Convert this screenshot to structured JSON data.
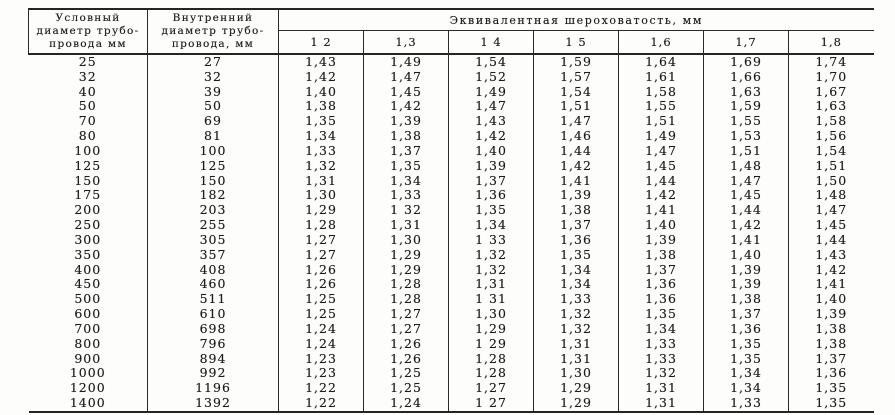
{
  "table": {
    "columns": {
      "nominal": [
        "Условный",
        "диаметр трубо-",
        "провода мм"
      ],
      "inner": [
        "Внутренний",
        "диаметр трубо-",
        "провода, мм"
      ],
      "roughness_group": "Эквивалентная шероховатость, мм",
      "roughness_values": [
        "1 2",
        "1,3",
        "1 4",
        "1 5",
        "1,6",
        "1,7",
        "1,8"
      ]
    },
    "rows": [
      [
        "25",
        "27",
        "1,43",
        "1,49",
        "1,54",
        "1,59",
        "1,64",
        "1,69",
        "1,74"
      ],
      [
        "32",
        "32",
        "1,42",
        "1,47",
        "1,52",
        "1,57",
        "1,61",
        "1,66",
        "1,70"
      ],
      [
        "40",
        "39",
        "1,40",
        "1,45",
        "1,49",
        "1,54",
        "1,58",
        "1,63",
        "1,67"
      ],
      [
        "50",
        "50",
        "1,38",
        "1,42",
        "1,47",
        "1,51",
        "1,55",
        "1,59",
        "1,63"
      ],
      [
        "70",
        "69",
        "1,35",
        "1,39",
        "1,43",
        "1,47",
        "1,51",
        "1,55",
        "1,58"
      ],
      [
        "80",
        "81",
        "1,34",
        "1,38",
        "1,42",
        "1,46",
        "1,49",
        "1,53",
        "1,56"
      ],
      [
        "100",
        "100",
        "1,33",
        "1,37",
        "1,40",
        "1,44",
        "1,47",
        "1,51",
        "1,54"
      ],
      [
        "125",
        "125",
        "1,32",
        "1,35",
        "1,39",
        "1,42",
        "1,45",
        "1,48",
        "1,51"
      ],
      [
        "150",
        "150",
        "1,31",
        "1,34",
        "1,37",
        "1,41",
        "1,44",
        "1,47",
        "1,50"
      ],
      [
        "175",
        "182",
        "1,30",
        "1,33",
        "1,36",
        "1,39",
        "1,42",
        "1,45",
        "1,48"
      ],
      [
        "200",
        "203",
        "1,29",
        "1 32",
        "1,35",
        "1,38",
        "1,41",
        "1,44",
        "1,47"
      ],
      [
        "250",
        "255",
        "1,28",
        "1,31",
        "1,34",
        "1,37",
        "1,40",
        "1,42",
        "1,45"
      ],
      [
        "300",
        "305",
        "1,27",
        "1,30",
        "1 33",
        "1,36",
        "1,39",
        "1,41",
        "1,44"
      ],
      [
        "350",
        "357",
        "1,27",
        "1,29",
        "1,32",
        "1,35",
        "1,38",
        "1,40",
        "1,43"
      ],
      [
        "400",
        "408",
        "1,26",
        "1,29",
        "1,32",
        "1,34",
        "1,37",
        "1,39",
        "1,42"
      ],
      [
        "450",
        "460",
        "1,26",
        "1,28",
        "1,31",
        "1,34",
        "1,36",
        "1,39",
        "1,41"
      ],
      [
        "500",
        "511",
        "1,25",
        "1,28",
        "1 31",
        "1,33",
        "1,36",
        "1,38",
        "1,40"
      ],
      [
        "600",
        "610",
        "1,25",
        "1,27",
        "1,30",
        "1,32",
        "1,35",
        "1,37",
        "1,39"
      ],
      [
        "700",
        "698",
        "1,24",
        "1,27",
        "1,29",
        "1,32",
        "1,34",
        "1,36",
        "1,38"
      ],
      [
        "800",
        "796",
        "1,24",
        "1,26",
        "1 29",
        "1,31",
        "1,33",
        "1,35",
        "1,38"
      ],
      [
        "900",
        "894",
        "1,23",
        "1,26",
        "1,28",
        "1,31",
        "1,33",
        "1,35",
        "1,37"
      ],
      [
        "1000",
        "992",
        "1,23",
        "1,25",
        "1,28",
        "1,30",
        "1,32",
        "1,34",
        "1,36"
      ],
      [
        "1200",
        "1196",
        "1,22",
        "1,25",
        "1,27",
        "1,29",
        "1,31",
        "1,34",
        "1,35"
      ],
      [
        "1400",
        "1392",
        "1,22",
        "1,24",
        "1 27",
        "1,29",
        "1,31",
        "1,33",
        "1,35"
      ]
    ]
  }
}
